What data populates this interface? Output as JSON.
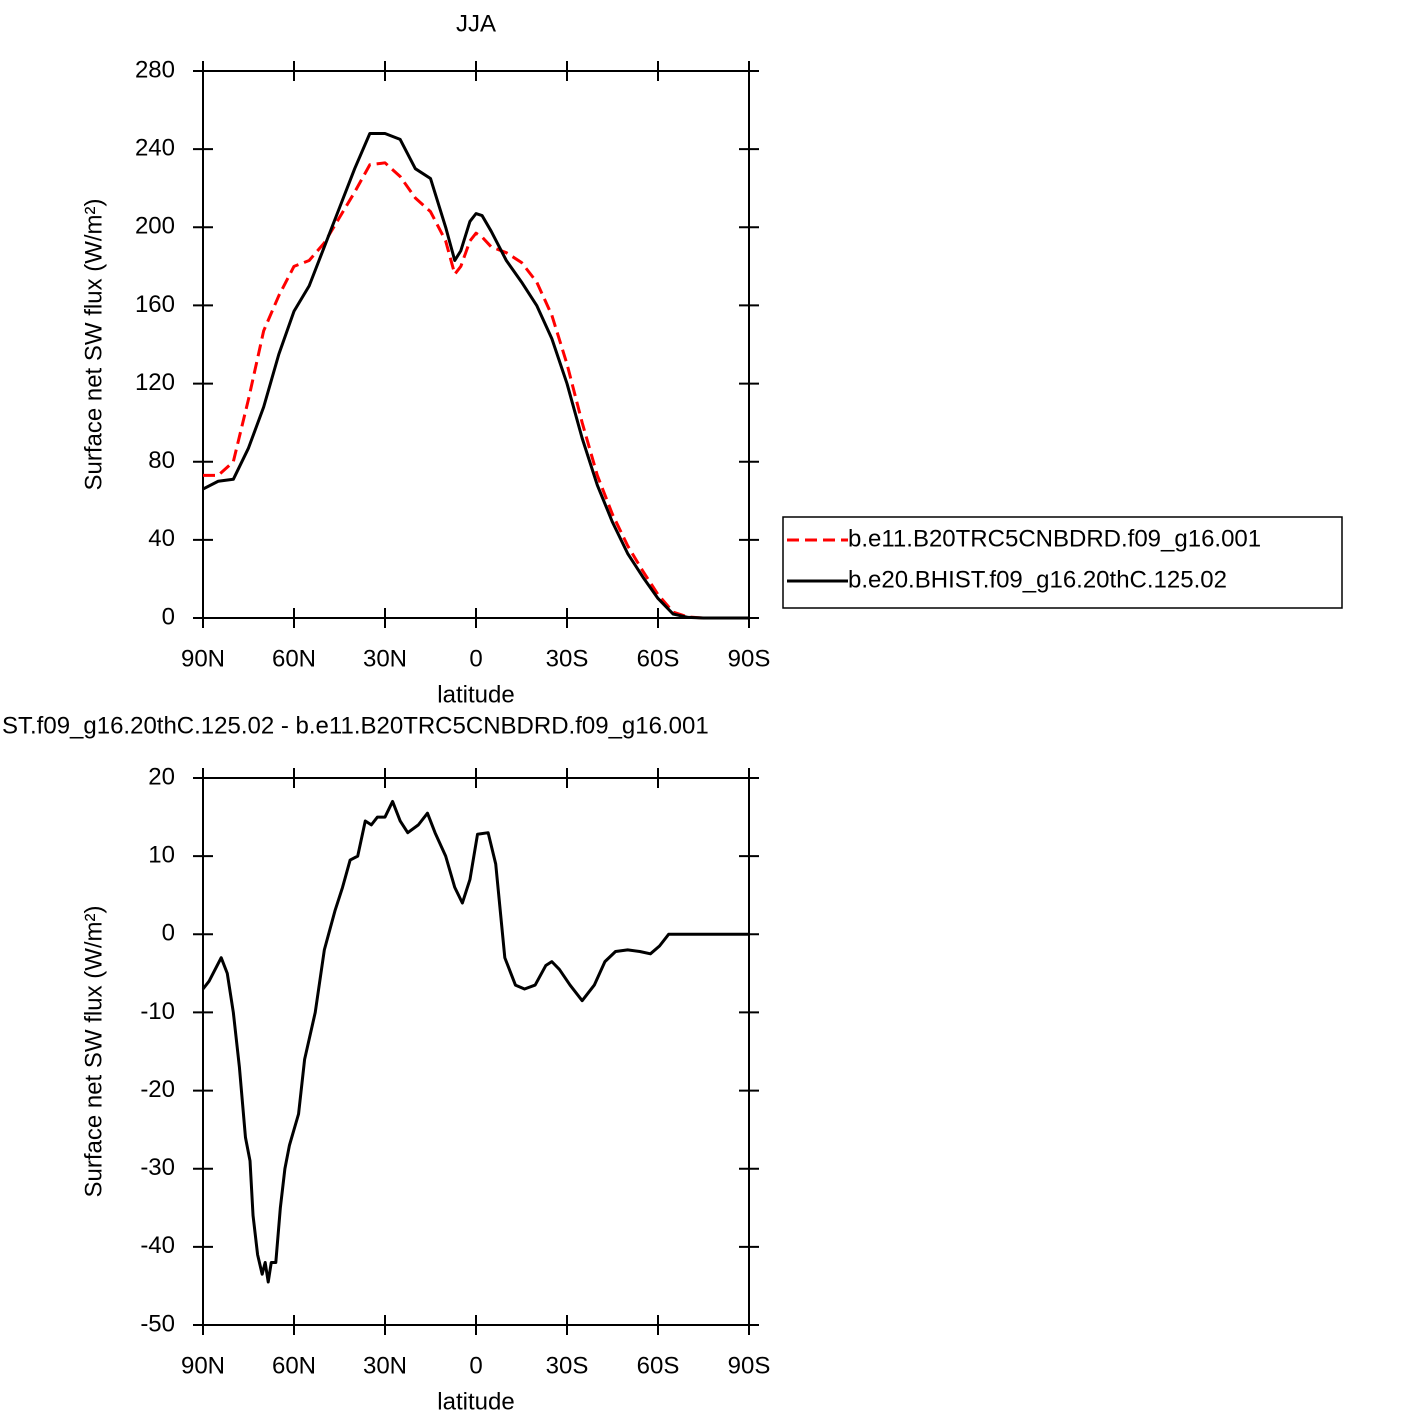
{
  "chart_data": [
    {
      "type": "line",
      "title": "JJA",
      "x_label": "latitude",
      "y_label": "Surface net SW flux (W/m²)",
      "x": [
        90,
        85,
        80,
        75,
        70,
        65,
        60,
        55,
        50,
        45,
        40,
        35,
        30,
        25,
        20,
        15,
        10,
        7,
        5,
        2,
        0,
        -2,
        -5,
        -10,
        -15,
        -20,
        -25,
        -30,
        -35,
        -40,
        -45,
        -50,
        -55,
        -60,
        -65,
        -70,
        -75,
        -80,
        -85,
        -90
      ],
      "series": [
        {
          "name": "b.e11.B20TRC5CNBDRD.f09_g16.001",
          "color": "#ff0000",
          "style": "dashed",
          "values": [
            73,
            73,
            80,
            112,
            147,
            165,
            180,
            183,
            192,
            205,
            218,
            232,
            233,
            226,
            215,
            208,
            193,
            176,
            180,
            193,
            197,
            195,
            190,
            187,
            182,
            172,
            155,
            130,
            100,
            73,
            53,
            37,
            24,
            12,
            3,
            0.5,
            0,
            0,
            0,
            0
          ]
        },
        {
          "name": "b.e20.BHIST.f09_g16.20thC.125.02",
          "color": "#000000",
          "style": "solid",
          "values": [
            66,
            70,
            71,
            87,
            108,
            135,
            157,
            170,
            190,
            210,
            230,
            248,
            248,
            245,
            230,
            225,
            200,
            183,
            188,
            203,
            207,
            206,
            198,
            183,
            172,
            160,
            143,
            120,
            92,
            68,
            49,
            33,
            21,
            10,
            2,
            0.3,
            0,
            0,
            0,
            0
          ]
        }
      ],
      "xlim": [
        90,
        -90
      ],
      "xticks": [
        {
          "value": 90,
          "label": "90N"
        },
        {
          "value": 60,
          "label": "60N"
        },
        {
          "value": 30,
          "label": "30N"
        },
        0,
        {
          "value": -30,
          "label": "30S"
        },
        {
          "value": -60,
          "label": "60S"
        },
        {
          "value": -90,
          "label": "90S"
        }
      ],
      "ylim": [
        0,
        280
      ],
      "yticks": [
        0,
        40,
        80,
        120,
        160,
        200,
        240,
        280
      ],
      "legend": "right"
    },
    {
      "type": "line",
      "title": "ST.f09_g16.20thC.125.02 - b.e11.B20TRC5CNBDRD.f09_g16.001",
      "x_label": "latitude",
      "y_label": "Surface net SW flux (W/m²)",
      "x": [
        90,
        88,
        84,
        82,
        80,
        78,
        76,
        74.5,
        73.5,
        72,
        70.5,
        69.5,
        68.5,
        67.5,
        66,
        64.5,
        63,
        61.5,
        58.5,
        56.5,
        53,
        50,
        46.5,
        44,
        41.5,
        39,
        36.5,
        34.5,
        32.5,
        30,
        27.5,
        25,
        22.5,
        19,
        16,
        13.5,
        10,
        7,
        4.5,
        2,
        -0.5,
        -4,
        -6.5,
        -9.5,
        -13,
        -16,
        -19.5,
        -23,
        -25,
        -27.5,
        -31,
        -35,
        -39,
        -42.5,
        -46,
        -50,
        -54,
        -57.5,
        -60.5,
        -63.5,
        -65.5,
        -70.5,
        -90
      ],
      "series": [
        {
          "color": "#000000",
          "style": "solid",
          "values": [
            -7,
            -6,
            -3,
            -5,
            -10,
            -17,
            -26,
            -29,
            -36,
            -41,
            -43.5,
            -42,
            -44.5,
            -42,
            -42,
            -35,
            -30,
            -27,
            -23,
            -16,
            -10,
            -2,
            3,
            6,
            9.5,
            10,
            14.5,
            14,
            15,
            15,
            17,
            14.5,
            13,
            14,
            15.5,
            13,
            10,
            6,
            4,
            7,
            12.8,
            13,
            9,
            -3,
            -6.5,
            -7,
            -6.5,
            -4,
            -3.5,
            -4.5,
            -6.5,
            -8.5,
            -6.5,
            -3.5,
            -2.2,
            -2,
            -2.2,
            -2.5,
            -1.5,
            0,
            0,
            0,
            0
          ]
        }
      ],
      "xlim": [
        90,
        -90
      ],
      "xticks": [
        {
          "value": 90,
          "label": "90N"
        },
        {
          "value": 60,
          "label": "60N"
        },
        {
          "value": 30,
          "label": "30N"
        },
        0,
        {
          "value": -30,
          "label": "30S"
        },
        {
          "value": -60,
          "label": "60S"
        },
        {
          "value": -90,
          "label": "90S"
        }
      ],
      "ylim": [
        -50,
        20
      ],
      "yticks": [
        -50,
        -40,
        -30,
        -20,
        -10,
        0,
        10,
        20
      ]
    }
  ]
}
